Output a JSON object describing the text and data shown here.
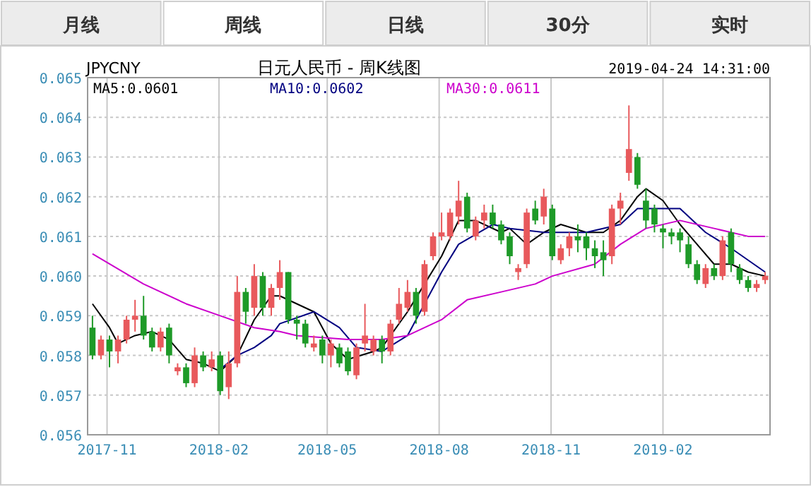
{
  "chart_data": {
    "type": "candlestick",
    "title": "日元人民币 - 周K线图",
    "subtitle": "JPYCNY",
    "annotations": [
      "月线",
      "周线",
      "日线",
      "30分",
      "实时",
      "2019-04-24 14:31:00"
    ],
    "x": [
      "2017-10-20",
      "2017-10-27",
      "2017-11-03",
      "2017-11-10",
      "2017-11-17",
      "2017-11-24",
      "2017-12-01",
      "2017-12-08",
      "2017-12-15",
      "2017-12-22",
      "2017-12-29",
      "2018-01-05",
      "2018-01-12",
      "2018-01-19",
      "2018-01-26",
      "2018-02-02",
      "2018-02-09",
      "2018-02-16",
      "2018-02-23",
      "2018-03-02",
      "2018-03-09",
      "2018-03-16",
      "2018-03-23",
      "2018-03-30",
      "2018-04-06",
      "2018-04-13",
      "2018-04-20",
      "2018-04-27",
      "2018-05-04",
      "2018-05-11",
      "2018-05-18",
      "2018-05-25",
      "2018-06-01",
      "2018-06-08",
      "2018-06-15",
      "2018-06-22",
      "2018-06-29",
      "2018-07-06",
      "2018-07-13",
      "2018-07-20",
      "2018-07-27",
      "2018-08-03",
      "2018-08-10",
      "2018-08-17",
      "2018-08-24",
      "2018-08-31",
      "2018-09-07",
      "2018-09-14",
      "2018-09-21",
      "2018-09-28",
      "2018-10-05",
      "2018-10-12",
      "2018-10-19",
      "2018-10-26",
      "2018-11-02",
      "2018-11-09",
      "2018-11-16",
      "2018-11-23",
      "2018-11-30",
      "2018-12-07",
      "2018-12-14",
      "2018-12-21",
      "2018-12-28",
      "2019-01-04",
      "2019-01-11",
      "2019-01-18",
      "2019-01-25",
      "2019-02-01",
      "2019-02-08",
      "2019-02-15",
      "2019-02-22",
      "2019-03-01",
      "2019-03-08",
      "2019-03-15",
      "2019-03-22",
      "2019-03-29",
      "2019-04-05",
      "2019-04-12",
      "2019-04-19",
      "2019-04-26"
    ],
    "ohlc": [
      [
        0.0587,
        0.059,
        0.0579,
        0.058
      ],
      [
        0.058,
        0.0585,
        0.0579,
        0.0584
      ],
      [
        0.0584,
        0.0585,
        0.0577,
        0.0581
      ],
      [
        0.0581,
        0.0585,
        0.0578,
        0.0584
      ],
      [
        0.0584,
        0.059,
        0.0583,
        0.0589
      ],
      [
        0.0589,
        0.0594,
        0.0586,
        0.059
      ],
      [
        0.059,
        0.0595,
        0.0584,
        0.0585
      ],
      [
        0.0586,
        0.0587,
        0.0581,
        0.0582
      ],
      [
        0.0582,
        0.0587,
        0.0581,
        0.0586
      ],
      [
        0.0587,
        0.0588,
        0.0578,
        0.058
      ],
      [
        0.0576,
        0.0578,
        0.0575,
        0.0577
      ],
      [
        0.0577,
        0.0578,
        0.0572,
        0.0573
      ],
      [
        0.0573,
        0.0582,
        0.0572,
        0.058
      ],
      [
        0.058,
        0.0581,
        0.0576,
        0.0577
      ],
      [
        0.0577,
        0.0581,
        0.0576,
        0.0579
      ],
      [
        0.058,
        0.0581,
        0.057,
        0.0571
      ],
      [
        0.0572,
        0.0581,
        0.0569,
        0.0578
      ],
      [
        0.0578,
        0.06,
        0.0577,
        0.0596
      ],
      [
        0.0596,
        0.0597,
        0.0588,
        0.0591
      ],
      [
        0.0592,
        0.0603,
        0.059,
        0.06
      ],
      [
        0.06,
        0.0601,
        0.059,
        0.0592
      ],
      [
        0.0592,
        0.0598,
        0.059,
        0.0597
      ],
      [
        0.0597,
        0.0604,
        0.0594,
        0.0601
      ],
      [
        0.0601,
        0.0601,
        0.0588,
        0.0589
      ],
      [
        0.0589,
        0.059,
        0.0584,
        0.0588
      ],
      [
        0.0588,
        0.0589,
        0.0582,
        0.0583
      ],
      [
        0.0582,
        0.0585,
        0.0581,
        0.0583
      ],
      [
        0.0584,
        0.0585,
        0.0578,
        0.058
      ],
      [
        0.058,
        0.0584,
        0.0577,
        0.0583
      ],
      [
        0.0582,
        0.0583,
        0.0577,
        0.0578
      ],
      [
        0.0581,
        0.0582,
        0.0575,
        0.0576
      ],
      [
        0.0575,
        0.0583,
        0.0574,
        0.0582
      ],
      [
        0.0583,
        0.0593,
        0.0581,
        0.0585
      ],
      [
        0.0581,
        0.0585,
        0.058,
        0.0584
      ],
      [
        0.0584,
        0.0585,
        0.0578,
        0.0581
      ],
      [
        0.0581,
        0.0589,
        0.058,
        0.0588
      ],
      [
        0.0589,
        0.0597,
        0.0588,
        0.0593
      ],
      [
        0.0592,
        0.0599,
        0.0591,
        0.0596
      ],
      [
        0.0596,
        0.0597,
        0.0588,
        0.059
      ],
      [
        0.0591,
        0.0604,
        0.059,
        0.0603
      ],
      [
        0.0605,
        0.0611,
        0.0604,
        0.061
      ],
      [
        0.061,
        0.0616,
        0.0609,
        0.0611
      ],
      [
        0.061,
        0.0617,
        0.0609,
        0.0616
      ],
      [
        0.0615,
        0.0624,
        0.0613,
        0.0619
      ],
      [
        0.062,
        0.0621,
        0.0611,
        0.0612
      ],
      [
        0.061,
        0.0615,
        0.0609,
        0.0614
      ],
      [
        0.0614,
        0.0618,
        0.0612,
        0.0616
      ],
      [
        0.0616,
        0.0618,
        0.0612,
        0.0613
      ],
      [
        0.0613,
        0.0614,
        0.0608,
        0.0609
      ],
      [
        0.061,
        0.0611,
        0.0603,
        0.0605
      ],
      [
        0.0601,
        0.0603,
        0.0599,
        0.0602
      ],
      [
        0.0603,
        0.0617,
        0.0602,
        0.0616
      ],
      [
        0.0617,
        0.0619,
        0.0613,
        0.0614
      ],
      [
        0.0615,
        0.0622,
        0.0613,
        0.062
      ],
      [
        0.0617,
        0.0618,
        0.0604,
        0.0605
      ],
      [
        0.0604,
        0.0608,
        0.0603,
        0.0607
      ],
      [
        0.0607,
        0.0611,
        0.0605,
        0.061
      ],
      [
        0.061,
        0.0613,
        0.0606,
        0.0609
      ],
      [
        0.061,
        0.0611,
        0.0604,
        0.0607
      ],
      [
        0.0607,
        0.0609,
        0.0602,
        0.0605
      ],
      [
        0.0606,
        0.0609,
        0.06,
        0.0604
      ],
      [
        0.0605,
        0.0618,
        0.0603,
        0.0617
      ],
      [
        0.0617,
        0.0621,
        0.0613,
        0.0619
      ],
      [
        0.0626,
        0.0643,
        0.0624,
        0.0632
      ],
      [
        0.063,
        0.0631,
        0.0622,
        0.0623
      ],
      [
        0.0619,
        0.0622,
        0.0612,
        0.0614
      ],
      [
        0.0617,
        0.0618,
        0.0611,
        0.0613
      ],
      [
        0.0612,
        0.0613,
        0.0607,
        0.0611
      ],
      [
        0.0611,
        0.0612,
        0.0608,
        0.061
      ],
      [
        0.0611,
        0.0612,
        0.0606,
        0.0609
      ],
      [
        0.0608,
        0.061,
        0.0602,
        0.0603
      ],
      [
        0.0603,
        0.0604,
        0.0598,
        0.0599
      ],
      [
        0.0598,
        0.0603,
        0.0597,
        0.0602
      ],
      [
        0.0602,
        0.0603,
        0.0599,
        0.06
      ],
      [
        0.06,
        0.061,
        0.0599,
        0.0609
      ],
      [
        0.0611,
        0.0612,
        0.0601,
        0.0603
      ],
      [
        0.0602,
        0.0603,
        0.0598,
        0.0599
      ],
      [
        0.0599,
        0.06,
        0.0596,
        0.0597
      ],
      [
        0.0597,
        0.0599,
        0.0596,
        0.0598
      ],
      [
        0.0599,
        0.0601,
        0.0598,
        0.06
      ]
    ],
    "series": [
      {
        "name": "MA5:0.0601",
        "type": "line",
        "color": "#000000",
        "x": [
          "2017-10-20",
          "2017-11-03",
          "2017-11-10",
          "2017-11-24",
          "2017-12-08",
          "2017-12-22",
          "2018-01-05",
          "2018-01-19",
          "2018-02-02",
          "2018-02-16",
          "2018-03-02",
          "2018-03-16",
          "2018-03-23",
          "2018-04-20",
          "2018-05-04",
          "2018-05-18",
          "2018-06-08",
          "2018-06-15",
          "2018-07-06",
          "2018-07-20",
          "2018-08-03",
          "2018-08-17",
          "2018-08-31",
          "2018-09-21",
          "2018-09-28",
          "2018-10-12",
          "2018-10-26",
          "2018-11-09",
          "2018-11-30",
          "2018-12-14",
          "2018-12-28",
          "2019-01-11",
          "2019-01-18",
          "2019-02-01",
          "2019-02-15",
          "2019-03-01",
          "2019-03-15",
          "2019-03-29",
          "2019-04-12",
          "2019-04-26"
        ],
        "values": [
          0.0593,
          0.0587,
          0.0583,
          0.0585,
          0.0586,
          0.0584,
          0.0579,
          0.0578,
          0.0576,
          0.058,
          0.0589,
          0.0595,
          0.0595,
          0.0591,
          0.0583,
          0.0579,
          0.0581,
          0.0582,
          0.0591,
          0.0598,
          0.0605,
          0.0614,
          0.0614,
          0.0611,
          0.0612,
          0.0608,
          0.0611,
          0.0613,
          0.0611,
          0.0611,
          0.0614,
          0.062,
          0.0622,
          0.0619,
          0.0613,
          0.0608,
          0.0603,
          0.0603,
          0.0601,
          0.06
        ]
      },
      {
        "name": "MA10:0.0602",
        "type": "line",
        "color": "#000080",
        "x": [
          "2018-02-02",
          "2018-02-16",
          "2018-03-02",
          "2018-03-16",
          "2018-03-23",
          "2018-04-20",
          "2018-05-11",
          "2018-05-25",
          "2018-06-15",
          "2018-07-06",
          "2018-07-20",
          "2018-08-03",
          "2018-08-17",
          "2018-09-14",
          "2018-09-28",
          "2018-10-26",
          "2018-11-30",
          "2018-12-28",
          "2019-01-11",
          "2019-02-01",
          "2019-02-15",
          "2019-03-08",
          "2019-03-29",
          "2019-04-26"
        ],
        "values": [
          0.05765,
          0.058,
          0.0582,
          0.0585,
          0.0588,
          0.0591,
          0.0587,
          0.0582,
          0.0581,
          0.0585,
          0.0593,
          0.0601,
          0.0608,
          0.0613,
          0.0612,
          0.0611,
          0.0611,
          0.0613,
          0.0617,
          0.0617,
          0.0617,
          0.0611,
          0.0607,
          0.0601
        ]
      },
      {
        "name": "MA30:0.0611",
        "type": "line",
        "color": "#cc00cc",
        "x": [
          "2017-10-20",
          "2017-12-01",
          "2018-01-05",
          "2018-02-02",
          "2018-03-02",
          "2018-03-23",
          "2018-04-06",
          "2018-05-18",
          "2018-06-15",
          "2018-07-06",
          "2018-08-03",
          "2018-08-24",
          "2018-09-21",
          "2018-10-19",
          "2018-11-02",
          "2018-12-07",
          "2018-12-28",
          "2019-01-18",
          "2019-02-15",
          "2019-03-15",
          "2019-04-12",
          "2019-04-26"
        ],
        "values": [
          0.06056,
          0.0598,
          0.0593,
          0.059,
          0.0587,
          0.0586,
          0.0585,
          0.0584,
          0.0584,
          0.0585,
          0.0589,
          0.0594,
          0.0596,
          0.0598,
          0.06,
          0.0603,
          0.0608,
          0.0612,
          0.0614,
          0.0612,
          0.061,
          0.061
        ]
      }
    ],
    "xlim": [
      "2017-10-16",
      "2019-04-30"
    ],
    "xticks": [
      "2017-11",
      "2018-02",
      "2018-05",
      "2018-08",
      "2018-11",
      "2019-02"
    ],
    "ylim": [
      0.056,
      0.065
    ],
    "yticks": [
      0.056,
      0.057,
      0.058,
      0.059,
      {
        "value": 0.06,
        "label": "0.060"
      },
      0.061,
      0.062,
      0.063,
      0.064,
      0.065
    ],
    "grid": true,
    "legend": "top"
  }
}
